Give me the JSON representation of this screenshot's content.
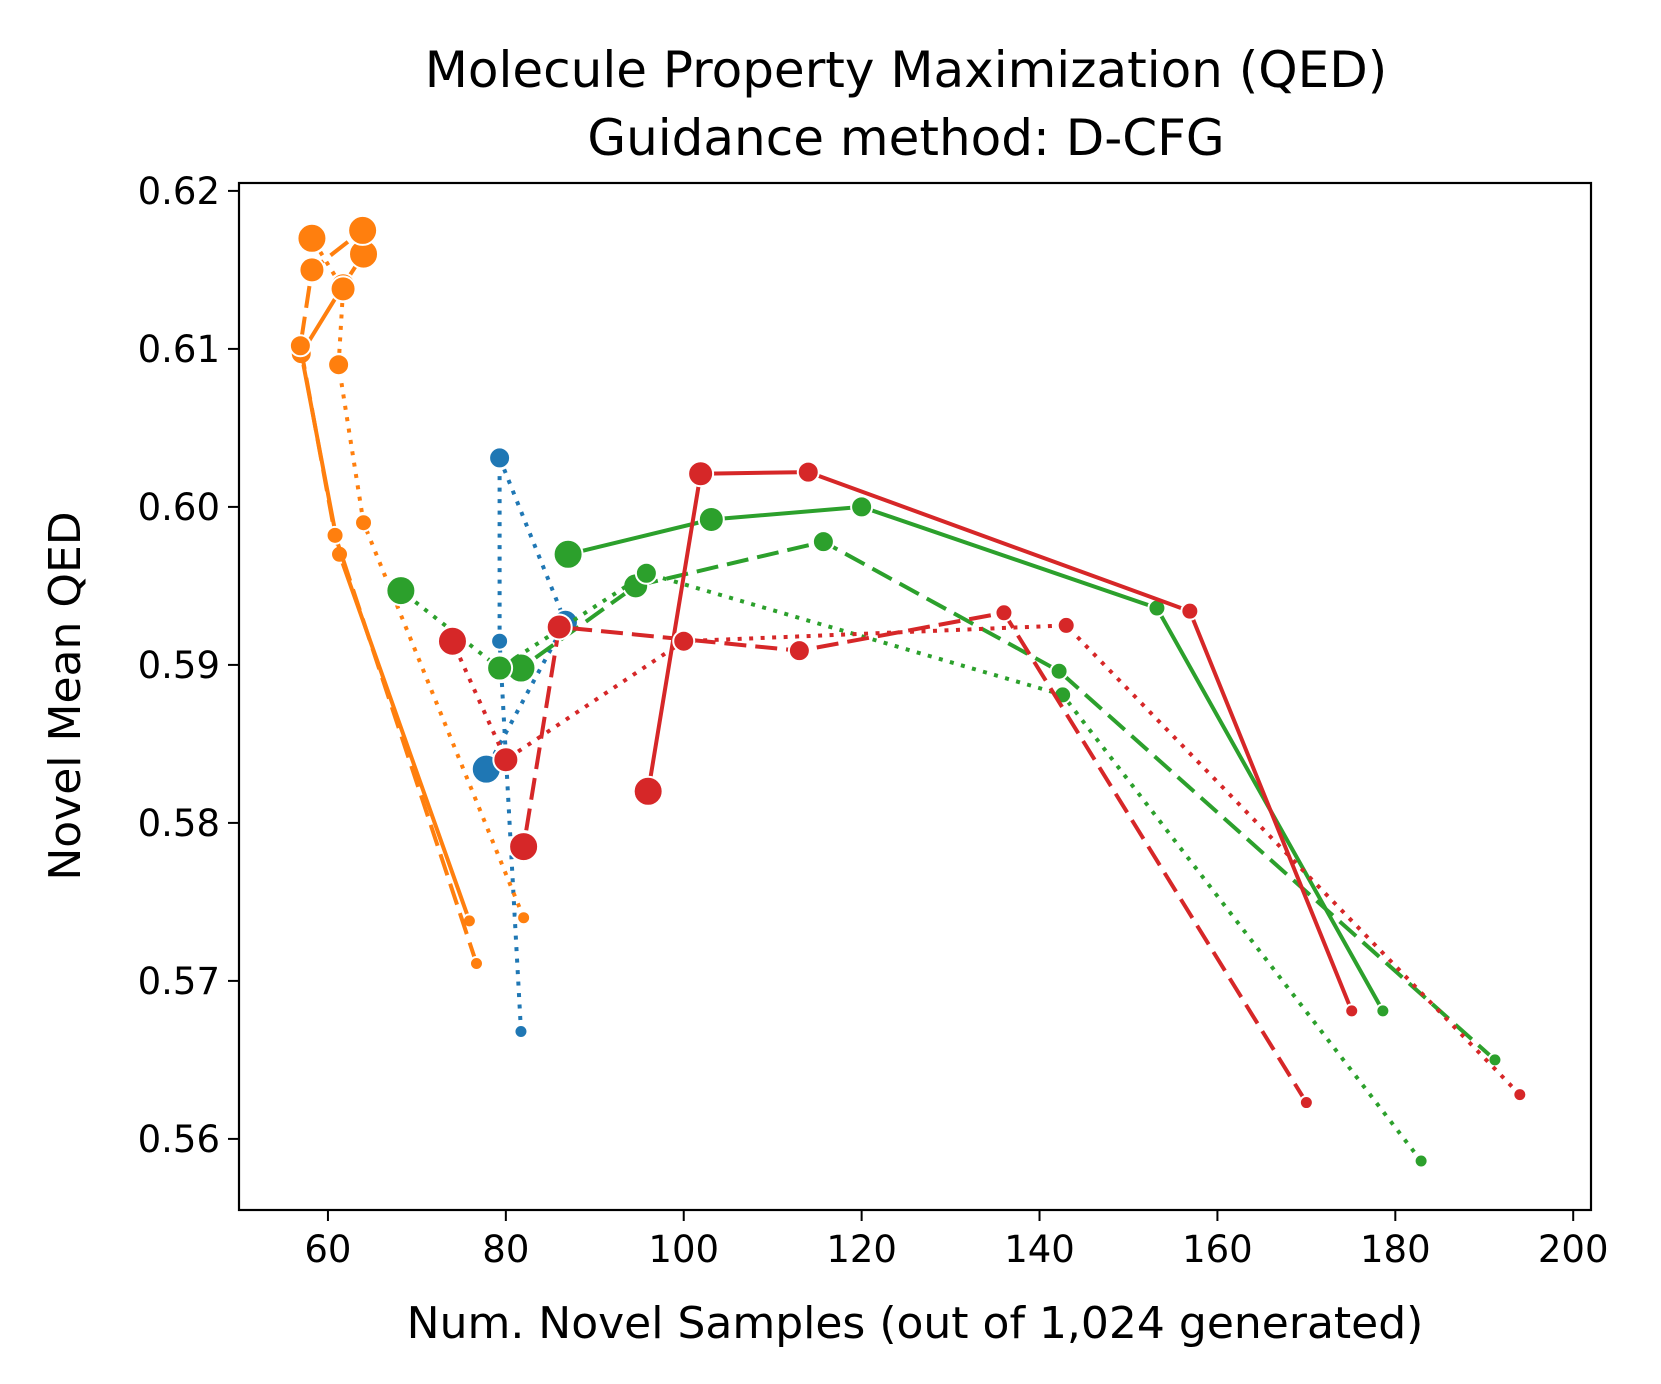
{
  "chart_data": {
    "type": "line",
    "title": "Molecule Property Maximization (QED)",
    "subtitle": "Guidance method: D-CFG",
    "xlabel": "Num. Novel Samples (out of 1,024 generated)",
    "ylabel": "Novel Mean QED",
    "xlim": [
      50,
      202
    ],
    "ylim": [
      0.5555,
      0.6205
    ],
    "x_ticks": [
      60,
      80,
      100,
      120,
      140,
      160,
      180,
      200
    ],
    "y_ticks": [
      0.56,
      0.57,
      0.58,
      0.59,
      0.6,
      0.61,
      0.62
    ],
    "x_tick_labels": [
      "60",
      "80",
      "100",
      "120",
      "140",
      "160",
      "180",
      "200"
    ],
    "y_tick_labels": [
      "0.56",
      "0.57",
      "0.58",
      "0.59",
      "0.60",
      "0.61",
      "0.62"
    ],
    "grid": false,
    "legend": "none",
    "series": [
      {
        "color": "#1f77b4",
        "style": "dotted",
        "points": [
          [
            81.7,
            0.5668
          ],
          [
            79.3,
            0.5915
          ],
          [
            79.3,
            0.6031
          ],
          [
            86.7,
            0.5927
          ],
          [
            77.8,
            0.5834
          ]
        ],
        "sizes": [
          0,
          1,
          2,
          3,
          4
        ]
      },
      {
        "color": "#ff7f0e",
        "style": "solid",
        "points": [
          [
            75.9,
            0.5738
          ],
          [
            61.3,
            0.597
          ],
          [
            57.0,
            0.6097
          ],
          [
            61.7,
            0.614
          ],
          [
            64.0,
            0.616
          ]
        ],
        "sizes": [
          0,
          1,
          2,
          3,
          4
        ]
      },
      {
        "color": "#ff7f0e",
        "style": "dashed",
        "points": [
          [
            76.7,
            0.5711
          ],
          [
            60.8,
            0.5982
          ],
          [
            56.9,
            0.6102
          ],
          [
            58.2,
            0.615
          ],
          [
            63.9,
            0.6175
          ]
        ],
        "sizes": [
          0,
          1,
          2,
          3,
          4
        ]
      },
      {
        "color": "#ff7f0e",
        "style": "dotted",
        "points": [
          [
            82.0,
            0.574
          ],
          [
            64.0,
            0.599
          ],
          [
            61.2,
            0.609
          ],
          [
            61.7,
            0.6138
          ],
          [
            58.2,
            0.617
          ]
        ],
        "sizes": [
          0,
          1,
          2,
          3,
          4
        ]
      },
      {
        "color": "#2ca02c",
        "style": "solid",
        "points": [
          [
            178.6,
            0.5681
          ],
          [
            153.2,
            0.5936
          ],
          [
            120.0,
            0.6
          ],
          [
            103.1,
            0.5992
          ],
          [
            87.0,
            0.597
          ]
        ],
        "sizes": [
          0,
          1,
          2,
          3,
          4
        ]
      },
      {
        "color": "#2ca02c",
        "style": "dashed",
        "points": [
          [
            191.2,
            0.565
          ],
          [
            142.2,
            0.5896
          ],
          [
            115.7,
            0.5978
          ],
          [
            94.6,
            0.595
          ],
          [
            81.7,
            0.5898
          ]
        ],
        "sizes": [
          0,
          1,
          2,
          3,
          4
        ]
      },
      {
        "color": "#2ca02c",
        "style": "dotted",
        "points": [
          [
            182.9,
            0.5586
          ],
          [
            142.6,
            0.5881
          ],
          [
            95.8,
            0.5958
          ],
          [
            79.3,
            0.5898
          ],
          [
            68.2,
            0.5947
          ]
        ],
        "sizes": [
          0,
          1,
          2,
          3,
          4
        ]
      },
      {
        "color": "#d62728",
        "style": "solid",
        "points": [
          [
            175.1,
            0.5681
          ],
          [
            156.9,
            0.5934
          ],
          [
            114.0,
            0.6022
          ],
          [
            101.9,
            0.6021
          ],
          [
            96.0,
            0.582
          ]
        ],
        "sizes": [
          0,
          1,
          2,
          3,
          4
        ]
      },
      {
        "color": "#d62728",
        "style": "dashed",
        "points": [
          [
            170.0,
            0.5623
          ],
          [
            136.0,
            0.5933
          ],
          [
            113.0,
            0.5909
          ],
          [
            86.0,
            0.5924
          ],
          [
            82.0,
            0.5785
          ]
        ],
        "sizes": [
          0,
          1,
          2,
          3,
          4
        ]
      },
      {
        "color": "#d62728",
        "style": "dotted",
        "points": [
          [
            194.0,
            0.5628
          ],
          [
            143.0,
            0.5925
          ],
          [
            100.0,
            0.5915
          ],
          [
            80.0,
            0.584
          ],
          [
            74.0,
            0.5915
          ]
        ],
        "sizes": [
          0,
          1,
          2,
          3,
          4
        ]
      }
    ]
  }
}
